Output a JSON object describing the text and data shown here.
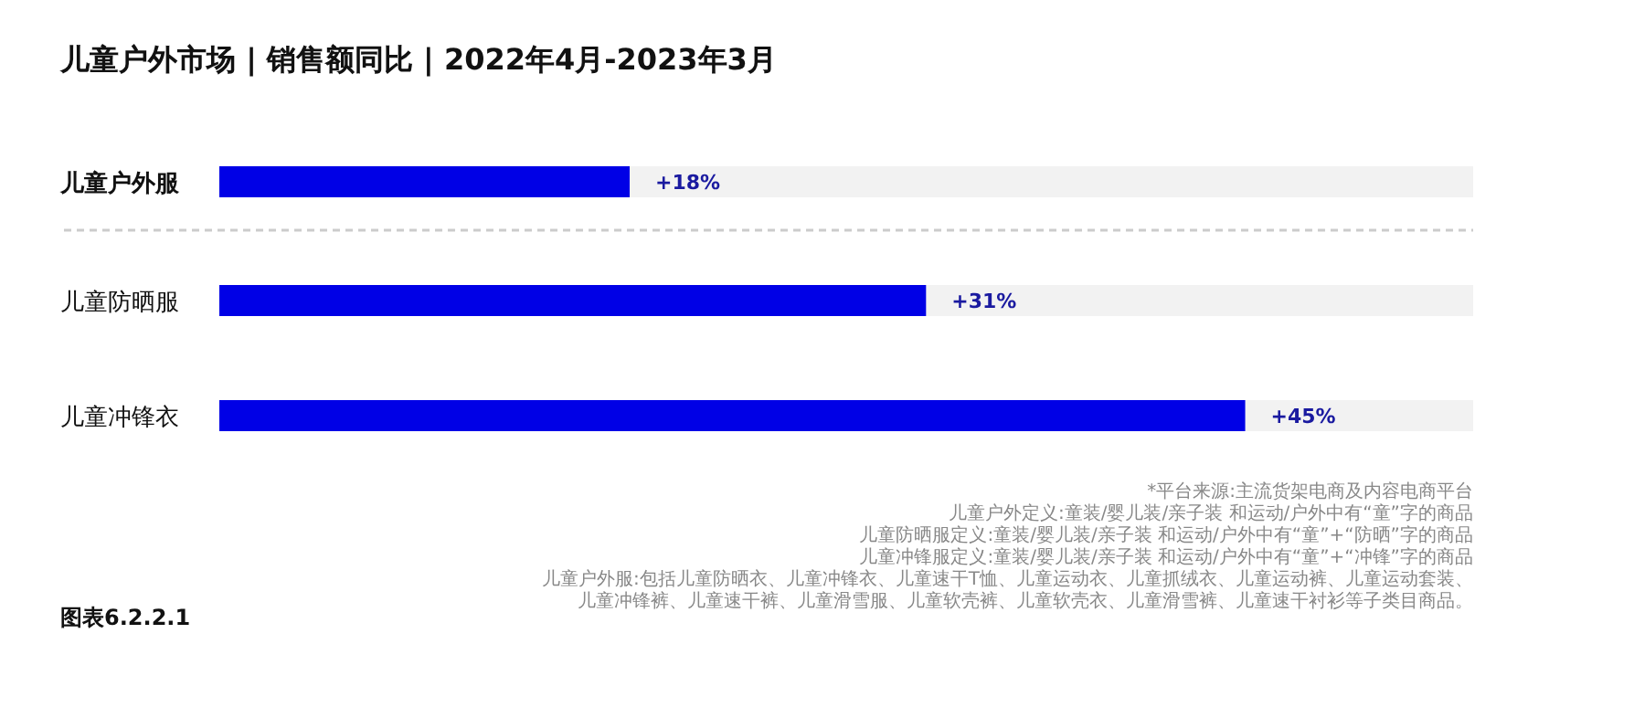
{
  "chart_data": {
    "type": "bar",
    "orientation": "horizontal",
    "title": "儿童户外市场 | 销售额同比 | 2022年4月-2023年3月",
    "categories": [
      "儿童户外服",
      "儿童防晒服",
      "儿童冲锋衣"
    ],
    "values": [
      18,
      31,
      45
    ],
    "value_labels": [
      "+18%",
      "+31%",
      "+45%"
    ],
    "color": "#0000e6",
    "xlim": [
      0,
      55
    ],
    "tick_labels": false,
    "annotations": [
      "*平台来源:主流货架电商及内容电商平台",
      "儿童户外定义:童装/婴儿装/亲子装 和运动/户外中有“童”字的商品",
      "儿童防晒服定义:童装/婴儿装/亲子装 和运动/户外中有“童”+“防晒”字的商品",
      "儿童冲锋服定义:童装/婴儿装/亲子装 和运动/户外中有“童”+“冲锋”字的商品",
      "儿童户外服:包括儿童防晒衣、儿童冲锋衣、儿童速干T恤、儿童运动衣、儿童抓绒衣、儿童运动裤、儿童运动套装、",
      "儿童冲锋裤、儿童速干裤、儿童滑雪服、儿童软壳裤、儿童软壳衣、儿童滑雪裤、儿童速干衬衫等子类目商品。",
      "图表6.2.2.1"
    ]
  }
}
